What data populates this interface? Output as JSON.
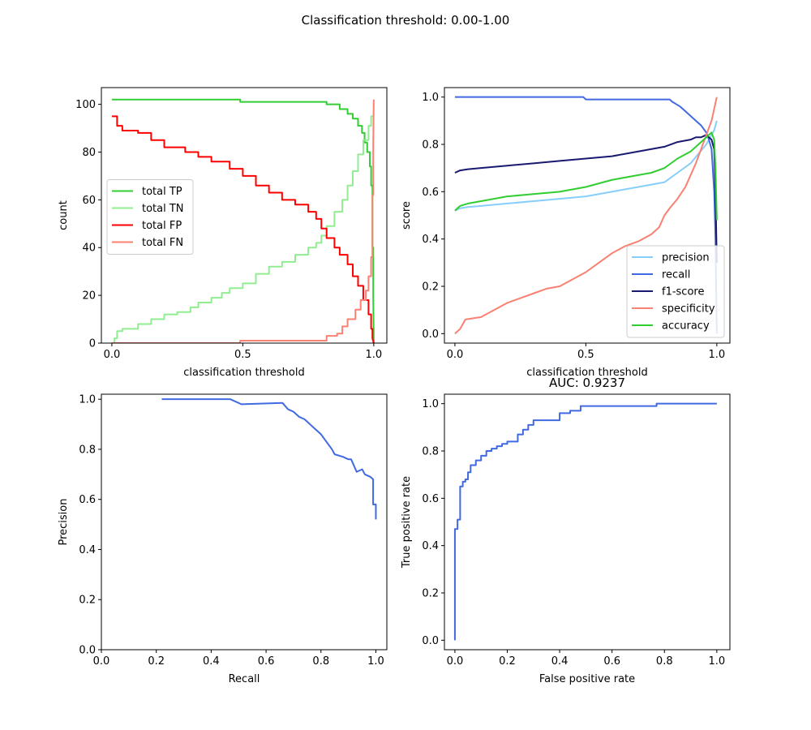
{
  "figure": {
    "title": "Classification threshold: 0.00-1.00"
  },
  "chart_data": [
    {
      "type": "line",
      "id": "counts",
      "title": "",
      "xlabel": "classification threshold",
      "ylabel": "count",
      "xlim": [
        -0.04,
        1.05
      ],
      "ylim": [
        0,
        107
      ],
      "xticks": [
        0.0,
        0.5,
        1.0
      ],
      "xtick_labels": [
        "0.0",
        "0.5",
        "1.0"
      ],
      "yticks": [
        0,
        20,
        40,
        60,
        80,
        100
      ],
      "ytick_labels": [
        "0",
        "20",
        "40",
        "60",
        "80",
        "100"
      ],
      "legend": "center-left",
      "grid": false,
      "series": [
        {
          "name": "total TP",
          "color": "#32cd32",
          "step": true,
          "x": [
            0.0,
            0.49,
            0.49,
            0.82,
            0.82,
            0.87,
            0.87,
            0.9,
            0.9,
            0.92,
            0.92,
            0.94,
            0.94,
            0.955,
            0.955,
            0.965,
            0.965,
            0.975,
            0.975,
            0.985,
            0.985,
            0.99,
            0.99,
            0.995,
            0.995,
            0.998,
            0.998,
            1.0
          ],
          "y": [
            102,
            102,
            101,
            101,
            100,
            100,
            98,
            98,
            96,
            96,
            94,
            94,
            91,
            91,
            88,
            88,
            84,
            84,
            80,
            80,
            74,
            74,
            66,
            66,
            40,
            40,
            20,
            0
          ]
        },
        {
          "name": "total TN",
          "color": "#90ee90",
          "step": true,
          "x": [
            0.0,
            0.01,
            0.01,
            0.02,
            0.02,
            0.04,
            0.04,
            0.1,
            0.1,
            0.15,
            0.15,
            0.2,
            0.2,
            0.25,
            0.25,
            0.3,
            0.3,
            0.33,
            0.33,
            0.38,
            0.38,
            0.42,
            0.42,
            0.45,
            0.45,
            0.5,
            0.5,
            0.55,
            0.55,
            0.6,
            0.6,
            0.65,
            0.65,
            0.7,
            0.7,
            0.75,
            0.75,
            0.78,
            0.78,
            0.8,
            0.8,
            0.82,
            0.82,
            0.85,
            0.85,
            0.88,
            0.88,
            0.9,
            0.9,
            0.92,
            0.92,
            0.94,
            0.94,
            0.96,
            0.96,
            0.98,
            0.98,
            0.99,
            0.99,
            1.0
          ],
          "y": [
            0,
            0,
            2,
            2,
            5,
            5,
            6,
            6,
            8,
            8,
            10,
            10,
            12,
            12,
            13,
            13,
            15,
            15,
            17,
            17,
            19,
            19,
            21,
            21,
            23,
            23,
            25,
            25,
            29,
            29,
            32,
            32,
            34,
            34,
            37,
            37,
            40,
            40,
            42,
            42,
            45,
            45,
            49,
            49,
            55,
            55,
            60,
            60,
            66,
            66,
            72,
            72,
            79,
            79,
            85,
            85,
            91,
            91,
            95,
            95
          ]
        },
        {
          "name": "total FP",
          "color": "#ff0000",
          "step": true,
          "x": [
            0.0,
            0.02,
            0.02,
            0.04,
            0.04,
            0.1,
            0.1,
            0.15,
            0.15,
            0.2,
            0.2,
            0.28,
            0.28,
            0.33,
            0.33,
            0.38,
            0.38,
            0.45,
            0.45,
            0.5,
            0.5,
            0.55,
            0.55,
            0.6,
            0.6,
            0.65,
            0.65,
            0.7,
            0.7,
            0.75,
            0.75,
            0.78,
            0.78,
            0.8,
            0.8,
            0.82,
            0.82,
            0.85,
            0.85,
            0.87,
            0.87,
            0.9,
            0.9,
            0.92,
            0.92,
            0.94,
            0.94,
            0.96,
            0.96,
            0.98,
            0.98,
            0.99,
            0.99,
            0.995,
            0.995,
            1.0
          ],
          "y": [
            95,
            95,
            91,
            91,
            89,
            89,
            88,
            88,
            85,
            85,
            82,
            82,
            80,
            80,
            78,
            78,
            76,
            76,
            73,
            73,
            70,
            70,
            66,
            66,
            63,
            63,
            60,
            60,
            58,
            58,
            55,
            55,
            52,
            52,
            48,
            48,
            44,
            44,
            40,
            40,
            37,
            37,
            33,
            33,
            28,
            28,
            24,
            24,
            18,
            18,
            12,
            12,
            6,
            6,
            2,
            0
          ]
        },
        {
          "name": "total FN",
          "color": "#fa8072",
          "step": true,
          "x": [
            0.0,
            0.49,
            0.49,
            0.82,
            0.82,
            0.86,
            0.86,
            0.88,
            0.88,
            0.9,
            0.9,
            0.93,
            0.93,
            0.95,
            0.95,
            0.97,
            0.97,
            0.98,
            0.98,
            0.99,
            0.99,
            0.995,
            0.995,
            0.998,
            0.998,
            1.0
          ],
          "y": [
            0,
            0,
            1,
            1,
            3,
            3,
            4,
            4,
            7,
            7,
            10,
            10,
            14,
            14,
            18,
            18,
            22,
            22,
            28,
            28,
            36,
            36,
            62,
            62,
            82,
            102
          ]
        }
      ]
    },
    {
      "type": "line",
      "id": "scores",
      "title": "",
      "xlabel": "classification threshold",
      "ylabel": "score",
      "xlim": [
        -0.04,
        1.05
      ],
      "ylim": [
        -0.04,
        1.04
      ],
      "xticks": [
        0.0,
        0.5,
        1.0
      ],
      "xtick_labels": [
        "0.0",
        "0.5",
        "1.0"
      ],
      "yticks": [
        0.0,
        0.2,
        0.4,
        0.6,
        0.8,
        1.0
      ],
      "ytick_labels": [
        "0.0",
        "0.2",
        "0.4",
        "0.6",
        "0.8",
        "1.0"
      ],
      "legend": "lower-right",
      "grid": false,
      "series": [
        {
          "name": "precision",
          "color": "#87cefa",
          "step": false,
          "x": [
            0.0,
            0.02,
            0.05,
            0.1,
            0.2,
            0.3,
            0.4,
            0.5,
            0.6,
            0.7,
            0.75,
            0.8,
            0.85,
            0.9,
            0.93,
            0.96,
            0.98,
            0.99,
            1.0
          ],
          "y": [
            0.52,
            0.53,
            0.535,
            0.54,
            0.55,
            0.56,
            0.57,
            0.58,
            0.6,
            0.62,
            0.63,
            0.64,
            0.68,
            0.72,
            0.76,
            0.8,
            0.84,
            0.86,
            0.9
          ]
        },
        {
          "name": "recall",
          "color": "#4169e1",
          "step": false,
          "x": [
            0.0,
            0.49,
            0.5,
            0.82,
            0.83,
            0.86,
            0.88,
            0.9,
            0.92,
            0.94,
            0.96,
            0.97,
            0.98,
            0.99,
            0.995,
            1.0
          ],
          "y": [
            1.0,
            1.0,
            0.99,
            0.99,
            0.98,
            0.96,
            0.94,
            0.92,
            0.9,
            0.88,
            0.85,
            0.82,
            0.78,
            0.6,
            0.4,
            0.0
          ]
        },
        {
          "name": "f1-score",
          "color": "#191970",
          "step": false,
          "x": [
            0.0,
            0.02,
            0.05,
            0.1,
            0.2,
            0.3,
            0.4,
            0.5,
            0.6,
            0.7,
            0.8,
            0.85,
            0.9,
            0.92,
            0.94,
            0.96,
            0.98,
            0.99,
            0.995,
            1.0
          ],
          "y": [
            0.68,
            0.69,
            0.695,
            0.7,
            0.71,
            0.72,
            0.73,
            0.74,
            0.75,
            0.77,
            0.79,
            0.81,
            0.82,
            0.83,
            0.83,
            0.84,
            0.82,
            0.78,
            0.6,
            0.3
          ]
        },
        {
          "name": "specificity",
          "color": "#fa8072",
          "step": false,
          "x": [
            0.0,
            0.02,
            0.04,
            0.1,
            0.15,
            0.2,
            0.25,
            0.3,
            0.35,
            0.4,
            0.45,
            0.5,
            0.55,
            0.6,
            0.65,
            0.7,
            0.75,
            0.78,
            0.8,
            0.82,
            0.85,
            0.88,
            0.9,
            0.92,
            0.94,
            0.96,
            0.98,
            0.99,
            1.0
          ],
          "y": [
            0.0,
            0.02,
            0.06,
            0.07,
            0.1,
            0.13,
            0.15,
            0.17,
            0.19,
            0.2,
            0.23,
            0.26,
            0.3,
            0.34,
            0.37,
            0.39,
            0.42,
            0.45,
            0.5,
            0.53,
            0.57,
            0.62,
            0.67,
            0.72,
            0.78,
            0.84,
            0.9,
            0.95,
            1.0
          ]
        },
        {
          "name": "accuracy",
          "color": "#32cd32",
          "step": false,
          "x": [
            0.0,
            0.02,
            0.05,
            0.1,
            0.2,
            0.3,
            0.4,
            0.5,
            0.6,
            0.7,
            0.75,
            0.8,
            0.85,
            0.9,
            0.93,
            0.96,
            0.98,
            0.99,
            0.995,
            1.0
          ],
          "y": [
            0.52,
            0.54,
            0.55,
            0.56,
            0.58,
            0.59,
            0.6,
            0.62,
            0.65,
            0.67,
            0.68,
            0.7,
            0.74,
            0.77,
            0.8,
            0.83,
            0.85,
            0.82,
            0.7,
            0.48
          ]
        }
      ]
    },
    {
      "type": "line",
      "id": "precision-recall",
      "title": "",
      "xlabel": "Recall",
      "ylabel": "Precision",
      "xlim": [
        0,
        1.04
      ],
      "ylim": [
        0,
        1.02
      ],
      "xticks": [
        0.0,
        0.2,
        0.4,
        0.6,
        0.8,
        1.0
      ],
      "xtick_labels": [
        "0.0",
        "0.2",
        "0.4",
        "0.6",
        "0.8",
        "1.0"
      ],
      "yticks": [
        0.0,
        0.2,
        0.4,
        0.6,
        0.8,
        1.0
      ],
      "ytick_labels": [
        "0.0",
        "0.2",
        "0.4",
        "0.6",
        "0.8",
        "1.0"
      ],
      "legend": "none",
      "grid": false,
      "series": [
        {
          "name": "",
          "color": "#4169e1",
          "step": false,
          "x": [
            0.22,
            0.47,
            0.51,
            0.66,
            0.68,
            0.7,
            0.72,
            0.74,
            0.76,
            0.78,
            0.8,
            0.82,
            0.84,
            0.85,
            0.88,
            0.9,
            0.91,
            0.93,
            0.95,
            0.96,
            0.98,
            0.99,
            0.99,
            1.0,
            1.0
          ],
          "y": [
            1.0,
            1.0,
            0.98,
            0.985,
            0.96,
            0.95,
            0.93,
            0.92,
            0.9,
            0.88,
            0.86,
            0.83,
            0.8,
            0.78,
            0.77,
            0.76,
            0.76,
            0.71,
            0.72,
            0.7,
            0.69,
            0.68,
            0.58,
            0.58,
            0.52
          ]
        }
      ]
    },
    {
      "type": "line",
      "id": "roc",
      "title": "AUC: 0.9237",
      "xlabel": "False positive rate",
      "ylabel": "True positive rate",
      "xlim": [
        -0.04,
        1.05
      ],
      "ylim": [
        -0.04,
        1.04
      ],
      "xticks": [
        0.0,
        0.2,
        0.4,
        0.6,
        0.8,
        1.0
      ],
      "xtick_labels": [
        "0.0",
        "0.2",
        "0.4",
        "0.6",
        "0.8",
        "1.0"
      ],
      "yticks": [
        0.0,
        0.2,
        0.4,
        0.6,
        0.8,
        1.0
      ],
      "ytick_labels": [
        "0.0",
        "0.2",
        "0.4",
        "0.6",
        "0.8",
        "1.0"
      ],
      "legend": "none",
      "grid": false,
      "series": [
        {
          "name": "",
          "color": "#4169e1",
          "step": true,
          "x": [
            0.0,
            0.0,
            0.01,
            0.01,
            0.02,
            0.02,
            0.03,
            0.03,
            0.04,
            0.04,
            0.05,
            0.05,
            0.06,
            0.06,
            0.08,
            0.08,
            0.1,
            0.1,
            0.12,
            0.12,
            0.14,
            0.14,
            0.16,
            0.16,
            0.18,
            0.18,
            0.2,
            0.2,
            0.24,
            0.24,
            0.26,
            0.26,
            0.28,
            0.28,
            0.3,
            0.3,
            0.4,
            0.4,
            0.44,
            0.44,
            0.48,
            0.48,
            0.77,
            0.77,
            1.0
          ],
          "y": [
            0.0,
            0.47,
            0.47,
            0.51,
            0.51,
            0.65,
            0.65,
            0.67,
            0.67,
            0.68,
            0.68,
            0.71,
            0.71,
            0.74,
            0.74,
            0.76,
            0.76,
            0.78,
            0.78,
            0.8,
            0.8,
            0.81,
            0.81,
            0.82,
            0.82,
            0.83,
            0.83,
            0.84,
            0.84,
            0.87,
            0.87,
            0.89,
            0.89,
            0.91,
            0.91,
            0.93,
            0.93,
            0.96,
            0.96,
            0.97,
            0.97,
            0.99,
            0.99,
            1.0,
            1.0
          ]
        }
      ]
    }
  ]
}
